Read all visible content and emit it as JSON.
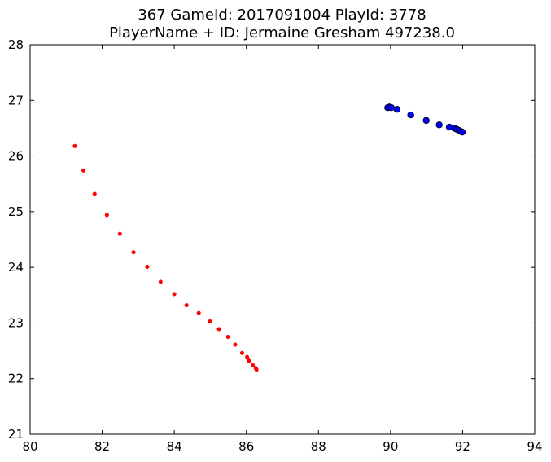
{
  "chart_data": {
    "type": "scatter",
    "title": [
      "367 GameId: 2017091004 PlayId: 3778",
      "PlayerName + ID: Jermaine Gresham 497238.0"
    ],
    "xlabel": "",
    "ylabel": "",
    "xlim": [
      80,
      94
    ],
    "ylim": [
      21,
      28
    ],
    "xticks": [
      "80",
      "82",
      "84",
      "86",
      "88",
      "90",
      "92",
      "94"
    ],
    "yticks": [
      "21",
      "22",
      "23",
      "24",
      "25",
      "26",
      "27",
      "28"
    ],
    "grid": false,
    "series": [
      {
        "color": "#ff0000",
        "marker": "small-dot",
        "points": [
          [
            81.24,
            26.18
          ],
          [
            81.48,
            25.74
          ],
          [
            81.79,
            25.32
          ],
          [
            82.13,
            24.94
          ],
          [
            82.49,
            24.6
          ],
          [
            82.87,
            24.27
          ],
          [
            83.25,
            24.01
          ],
          [
            83.62,
            23.74
          ],
          [
            84.0,
            23.52
          ],
          [
            84.34,
            23.32
          ],
          [
            84.68,
            23.18
          ],
          [
            84.99,
            23.03
          ],
          [
            85.24,
            22.89
          ],
          [
            85.49,
            22.75
          ],
          [
            85.69,
            22.61
          ],
          [
            85.88,
            22.46
          ],
          [
            86.02,
            22.39
          ],
          [
            86.06,
            22.34
          ],
          [
            86.08,
            22.31
          ],
          [
            86.18,
            22.24
          ],
          [
            86.26,
            22.19
          ],
          [
            86.28,
            22.16
          ]
        ]
      },
      {
        "color": "#0000ff",
        "marker": "circle-outlined",
        "points": [
          [
            89.92,
            26.87
          ],
          [
            89.97,
            26.88
          ],
          [
            90.02,
            26.87
          ],
          [
            90.18,
            26.84
          ],
          [
            90.56,
            26.74
          ],
          [
            90.99,
            26.64
          ],
          [
            91.35,
            26.56
          ],
          [
            91.63,
            26.52
          ],
          [
            91.77,
            26.5
          ],
          [
            91.84,
            26.48
          ],
          [
            91.91,
            26.46
          ],
          [
            91.96,
            26.44
          ],
          [
            91.99,
            26.43
          ]
        ]
      }
    ]
  }
}
